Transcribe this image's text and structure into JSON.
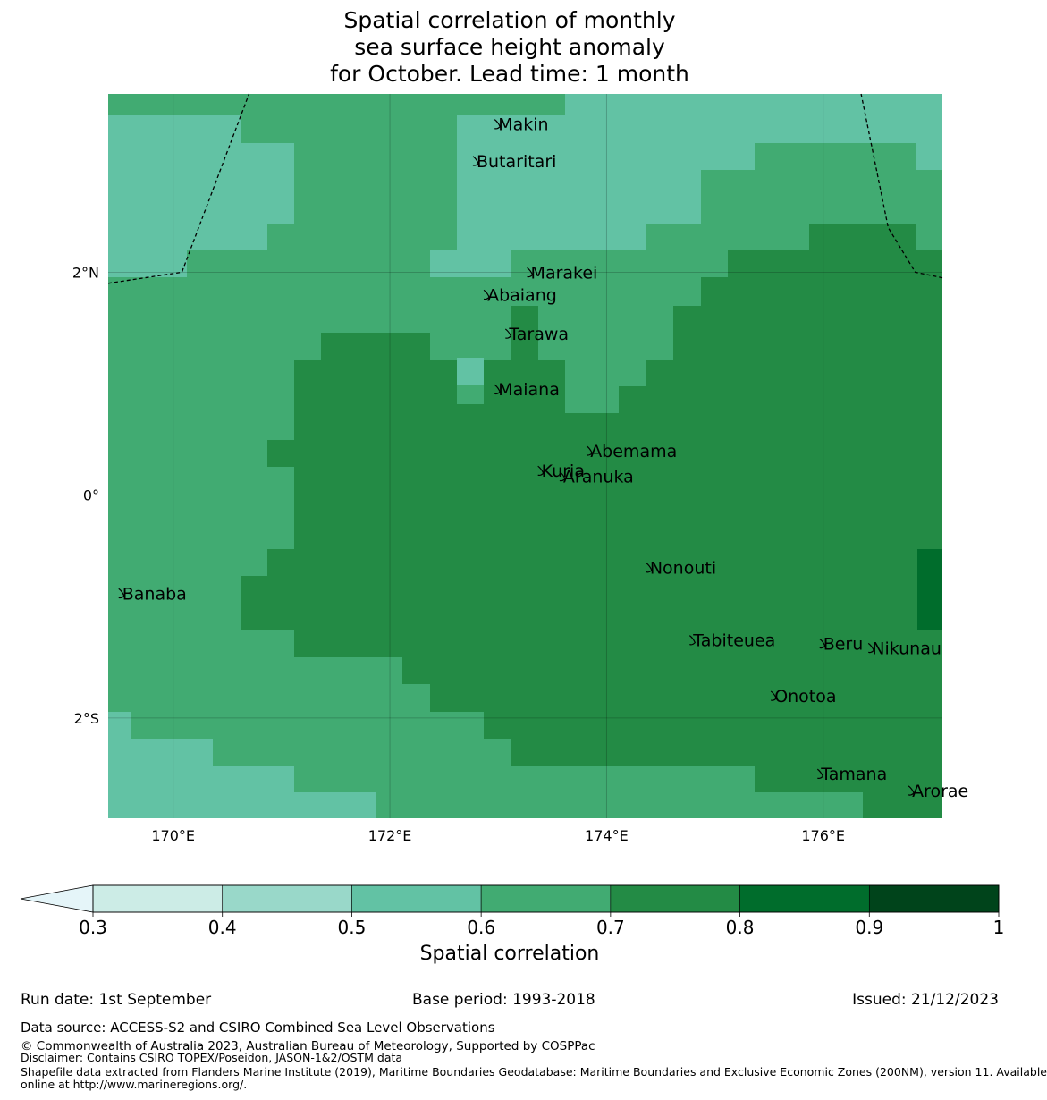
{
  "title": {
    "line1": "Spatial correlation of monthly",
    "line2": "sea surface height anomaly",
    "line3": "for October. Lead time: 1 month"
  },
  "map": {
    "lon_range": [
      169.4,
      177.1
    ],
    "lat_range": [
      -2.9,
      3.6
    ],
    "x_ticks": [
      {
        "value": 170,
        "label": "170°E"
      },
      {
        "value": 172,
        "label": "172°E"
      },
      {
        "value": 174,
        "label": "174°E"
      },
      {
        "value": 176,
        "label": "176°E"
      }
    ],
    "y_ticks": [
      {
        "value": 2,
        "label": "2°N"
      },
      {
        "value": 0,
        "label": "0°"
      },
      {
        "value": -2,
        "label": "2°S"
      }
    ],
    "places": [
      {
        "name": "Makin",
        "lon": 173.0,
        "lat": 3.33
      },
      {
        "name": "Butaritari",
        "lon": 172.8,
        "lat": 3.0
      },
      {
        "name": "Marakei",
        "lon": 173.3,
        "lat": 2.0
      },
      {
        "name": "Abaiang",
        "lon": 172.9,
        "lat": 1.8
      },
      {
        "name": "Tarawa",
        "lon": 173.1,
        "lat": 1.45
      },
      {
        "name": "Maiana",
        "lon": 173.0,
        "lat": 0.95
      },
      {
        "name": "Abemama",
        "lon": 173.85,
        "lat": 0.4
      },
      {
        "name": "Kuria",
        "lon": 173.4,
        "lat": 0.22
      },
      {
        "name": "Aranuka",
        "lon": 173.6,
        "lat": 0.17
      },
      {
        "name": "Nonouti",
        "lon": 174.4,
        "lat": -0.65
      },
      {
        "name": "Banaba",
        "lon": 169.53,
        "lat": -0.88
      },
      {
        "name": "Tabiteuea",
        "lon": 174.8,
        "lat": -1.3
      },
      {
        "name": "Beru",
        "lon": 176.0,
        "lat": -1.33
      },
      {
        "name": "Nikunau",
        "lon": 176.45,
        "lat": -1.37
      },
      {
        "name": "Onotoa",
        "lon": 175.55,
        "lat": -1.8
      },
      {
        "name": "Tamana",
        "lon": 175.98,
        "lat": -2.5
      },
      {
        "name": "Arorae",
        "lon": 176.82,
        "lat": -2.65
      }
    ],
    "eez_boundaries": [
      [
        [
          169.4,
          1.9
        ],
        [
          170.08,
          2.0
        ],
        [
          170.7,
          3.6
        ]
      ],
      [
        [
          176.35,
          3.6
        ],
        [
          176.6,
          2.4
        ],
        [
          176.85,
          2.0
        ],
        [
          177.1,
          1.95
        ]
      ]
    ],
    "colors": {
      "c05": "#62c2a4",
      "c06": "#41ab72",
      "c07": "#238b45",
      "c08": "#006d2c"
    }
  },
  "colorbar": {
    "label": "Spatial correlation",
    "ticks": [
      "0.3",
      "0.4",
      "0.5",
      "0.6",
      "0.7",
      "0.8",
      "0.9",
      "1"
    ],
    "bins": [
      {
        "lower": 0.3,
        "upper": 0.4,
        "color": "#ccece6"
      },
      {
        "lower": 0.4,
        "upper": 0.5,
        "color": "#99d8c9"
      },
      {
        "lower": 0.5,
        "upper": 0.6,
        "color": "#62c2a4"
      },
      {
        "lower": 0.6,
        "upper": 0.7,
        "color": "#41ab72"
      },
      {
        "lower": 0.7,
        "upper": 0.8,
        "color": "#238b45"
      },
      {
        "lower": 0.8,
        "upper": 0.9,
        "color": "#006d2c"
      },
      {
        "lower": 0.9,
        "upper": 1.0,
        "color": "#00441b"
      }
    ],
    "under_color": "#e5f5f9"
  },
  "footer": {
    "run_date": "Run date: 1st September",
    "base_period": "Base period: 1993-2018",
    "issued": "Issued: 21/12/2023",
    "data_source": "Data source: ACCESS-S2 and CSIRO Combined Sea Level Observations",
    "copyright": "© Commonwealth of Australia 2023, Australian Bureau of Meteorology, Supported by COSPPac",
    "disclaimer": "Disclaimer: Contains CSIRO TOPEX/Poseidon, JASON-1&2/OSTM data",
    "shapefile_line1": "Shapefile data extracted from Flanders Marine Institute (2019), Maritime Boundaries Geodatabase: Maritime Boundaries and Exclusive Economic Zones (200NM), version 11. Available",
    "shapefile_line2": "online at http://www.marineregions.org/."
  }
}
